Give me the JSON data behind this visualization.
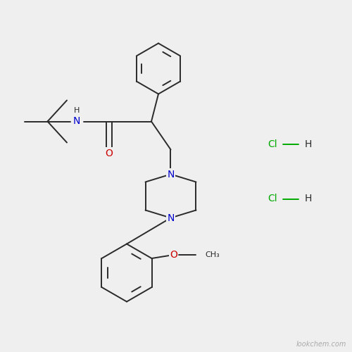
{
  "background_color": "#efefef",
  "bond_color": "#2a2a2a",
  "bond_width": 1.4,
  "atom_colors": {
    "N": "#0000cc",
    "O": "#cc0000",
    "H": "#2a2a2a",
    "Cl": "#00aa00",
    "C": "#2a2a2a"
  },
  "font_size_atom": 10,
  "watermark": "lookchem.com",
  "watermark_color": "#aaaaaa",
  "watermark_fontsize": 7
}
